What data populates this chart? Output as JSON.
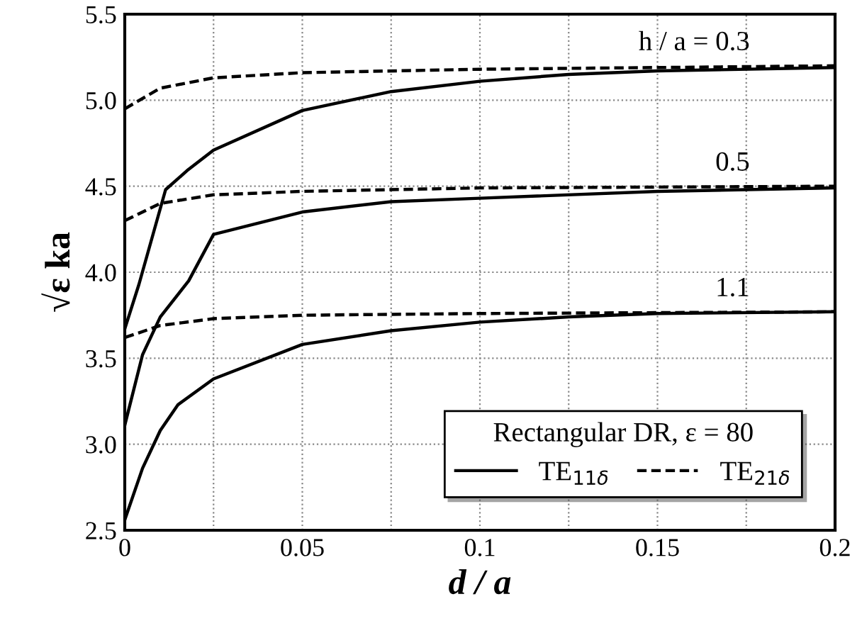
{
  "chart_data": {
    "type": "line",
    "xlabel": "d / a",
    "ylabel": "√ε ka",
    "legend_title": "Rectangular DR, ε = 80",
    "xlim": [
      0,
      0.2
    ],
    "ylim": [
      2.5,
      5.5
    ],
    "xticks": [
      0,
      {
        "value": 0.025,
        "label": null
      },
      0.05,
      {
        "value": 0.075,
        "label": null
      },
      0.1,
      {
        "value": 0.125,
        "label": null
      },
      0.15,
      {
        "value": 0.175,
        "label": null
      },
      0.2
    ],
    "yticks": [
      {
        "value": 2.5,
        "label": "2.5"
      },
      {
        "value": 3,
        "label": "3.0"
      },
      {
        "value": 3.5,
        "label": "3.5"
      },
      {
        "value": 4,
        "label": "4.0"
      },
      {
        "value": 4.5,
        "label": "4.5"
      },
      {
        "value": 5,
        "label": "5.0"
      },
      {
        "value": 5.5,
        "label": "5.5"
      }
    ],
    "grid": true,
    "legend": "bottom right",
    "marker": "none",
    "series": [
      {
        "name": "TE$_{11δ}$",
        "color": "#000000",
        "line_style": "solid",
        "x": [
          0,
          0.004,
          0.0115,
          0.0175,
          0.025,
          0.05,
          0.075,
          0.1,
          0.125,
          0.15,
          0.2
        ],
        "values": [
          3.67,
          3.93,
          4.48,
          4.59,
          4.71,
          4.94,
          5.05,
          5.11,
          5.15,
          5.17,
          5.19
        ]
      },
      {
        "name": "TE$_{21δ}$",
        "color": "#000000",
        "line_style": "dashed",
        "x": [
          0,
          0.01,
          0.025,
          0.05,
          0.1,
          0.15,
          0.2
        ],
        "values": [
          4.95,
          5.07,
          5.13,
          5.16,
          5.18,
          5.19,
          5.2
        ]
      },
      {
        "color": "#000000",
        "line_style": "solid",
        "x": [
          0,
          0.005,
          0.01,
          0.018,
          0.025,
          0.05,
          0.075,
          0.1,
          0.15,
          0.2
        ],
        "values": [
          3.11,
          3.52,
          3.74,
          3.95,
          4.22,
          4.35,
          4.41,
          4.43,
          4.47,
          4.49
        ]
      },
      {
        "color": "#000000",
        "line_style": "dashed",
        "x": [
          0,
          0.01,
          0.025,
          0.05,
          0.1,
          0.2
        ],
        "values": [
          4.3,
          4.4,
          4.45,
          4.47,
          4.49,
          4.5
        ]
      },
      {
        "color": "#000000",
        "line_style": "solid",
        "x": [
          0,
          0.005,
          0.01,
          0.015,
          0.025,
          0.05,
          0.075,
          0.1,
          0.125,
          0.15,
          0.2
        ],
        "values": [
          2.56,
          2.86,
          3.08,
          3.23,
          3.38,
          3.58,
          3.66,
          3.71,
          3.74,
          3.76,
          3.77
        ]
      },
      {
        "color": "#000000",
        "line_style": "dashed",
        "x": [
          0,
          0.01,
          0.025,
          0.05,
          0.1,
          0.2
        ],
        "values": [
          3.62,
          3.69,
          3.73,
          3.75,
          3.76,
          3.77
        ]
      }
    ],
    "annotations": [
      "h / a = 0.3",
      "0.5",
      "1.1"
    ]
  }
}
